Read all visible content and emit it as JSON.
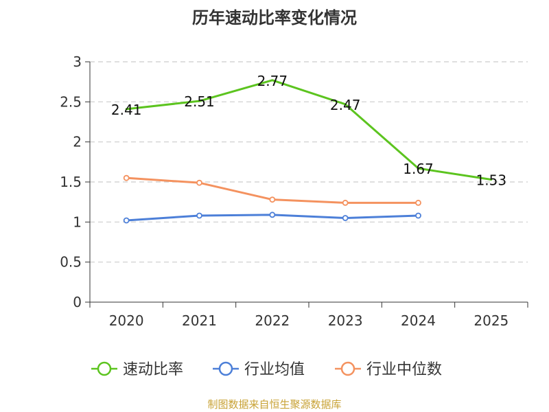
{
  "chart_data": {
    "type": "line",
    "title": "历年速动比率变化情况",
    "categories": [
      "2020",
      "2021",
      "2022",
      "2023",
      "2024",
      "2025"
    ],
    "ylim": [
      0,
      3
    ],
    "yticks": [
      "0",
      "0.5",
      "1",
      "1.5",
      "2",
      "2.5",
      "3"
    ],
    "grid": true,
    "legend_position": "bottom",
    "series": [
      {
        "name": "速动比率",
        "color": "#5cc41f",
        "values": [
          2.41,
          2.51,
          2.77,
          2.47,
          1.67,
          1.53
        ],
        "labels": [
          "2.41",
          "2.51",
          "2.77",
          "2.47",
          "1.67",
          "1.53"
        ]
      },
      {
        "name": "行业均值",
        "color": "#4c7fd8",
        "values": [
          1.02,
          1.08,
          1.09,
          1.05,
          1.08,
          null
        ]
      },
      {
        "name": "行业中位数",
        "color": "#f4925f",
        "values": [
          1.55,
          1.49,
          1.28,
          1.24,
          1.24,
          null
        ]
      }
    ],
    "source": "制图数据来自恒生聚源数据库"
  }
}
